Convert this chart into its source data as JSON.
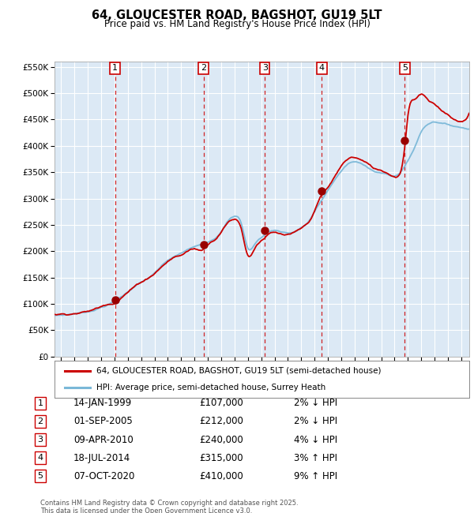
{
  "title": "64, GLOUCESTER ROAD, BAGSHOT, GU19 5LT",
  "subtitle": "Price paid vs. HM Land Registry's House Price Index (HPI)",
  "legend_line1": "64, GLOUCESTER ROAD, BAGSHOT, GU19 5LT (semi-detached house)",
  "legend_line2": "HPI: Average price, semi-detached house, Surrey Heath",
  "transactions": [
    {
      "num": 1,
      "date": "14-JAN-1999",
      "price": 107000,
      "pct": "2%",
      "dir": "↓",
      "x_year": 1999.04
    },
    {
      "num": 2,
      "date": "01-SEP-2005",
      "price": 212000,
      "pct": "2%",
      "dir": "↓",
      "x_year": 2005.67
    },
    {
      "num": 3,
      "date": "09-APR-2010",
      "price": 240000,
      "pct": "4%",
      "dir": "↓",
      "x_year": 2010.27
    },
    {
      "num": 4,
      "date": "18-JUL-2014",
      "price": 315000,
      "pct": "3%",
      "dir": "↑",
      "x_year": 2014.54
    },
    {
      "num": 5,
      "date": "07-OCT-2020",
      "price": 410000,
      "pct": "9%",
      "dir": "↑",
      "x_year": 2020.77
    }
  ],
  "hpi_color": "#7ab8d8",
  "price_color": "#cc0000",
  "dot_color": "#990000",
  "vline_color": "#cc0000",
  "bg_color": "#dce9f5",
  "grid_color": "#ffffff",
  "footer": "Contains HM Land Registry data © Crown copyright and database right 2025.\nThis data is licensed under the Open Government Licence v3.0.",
  "ylim": [
    0,
    560000
  ],
  "yticks": [
    0,
    50000,
    100000,
    150000,
    200000,
    250000,
    300000,
    350000,
    400000,
    450000,
    500000,
    550000
  ],
  "xlim_start": 1994.5,
  "xlim_end": 2025.6,
  "hpi_anchors_x": [
    1994.5,
    1995.0,
    1995.5,
    1996.0,
    1996.5,
    1997.0,
    1997.5,
    1998.0,
    1998.5,
    1999.0,
    1999.5,
    2000.0,
    2000.5,
    2001.0,
    2001.5,
    2002.0,
    2002.5,
    2003.0,
    2003.5,
    2004.0,
    2004.5,
    2005.0,
    2005.5,
    2006.0,
    2006.5,
    2007.0,
    2007.5,
    2008.0,
    2008.5,
    2009.0,
    2009.5,
    2010.0,
    2010.5,
    2011.0,
    2011.5,
    2012.0,
    2012.5,
    2013.0,
    2013.5,
    2014.0,
    2014.5,
    2015.0,
    2015.5,
    2016.0,
    2016.5,
    2017.0,
    2017.5,
    2018.0,
    2018.5,
    2019.0,
    2019.5,
    2020.0,
    2020.5,
    2021.0,
    2021.5,
    2022.0,
    2022.5,
    2023.0,
    2023.5,
    2024.0,
    2024.5,
    2025.0,
    2025.5
  ],
  "hpi_anchors_y": [
    78000,
    79000,
    80000,
    82000,
    84000,
    86000,
    90000,
    95000,
    100000,
    107000,
    115000,
    125000,
    135000,
    143000,
    150000,
    160000,
    172000,
    183000,
    190000,
    196000,
    203000,
    208000,
    212000,
    218000,
    225000,
    240000,
    260000,
    268000,
    255000,
    208000,
    215000,
    228000,
    238000,
    242000,
    240000,
    238000,
    240000,
    248000,
    258000,
    278000,
    298000,
    318000,
    338000,
    355000,
    368000,
    372000,
    368000,
    362000,
    355000,
    352000,
    348000,
    345000,
    355000,
    375000,
    400000,
    430000,
    445000,
    450000,
    448000,
    445000,
    442000,
    440000,
    438000
  ],
  "price_anchors_x": [
    1994.5,
    1995.0,
    1995.5,
    1996.0,
    1996.5,
    1997.0,
    1997.5,
    1998.0,
    1998.5,
    1999.04,
    1999.5,
    2000.0,
    2000.5,
    2001.0,
    2001.5,
    2002.0,
    2002.5,
    2003.0,
    2003.5,
    2004.0,
    2004.5,
    2005.0,
    2005.67,
    2006.0,
    2006.5,
    2007.0,
    2007.5,
    2008.0,
    2008.5,
    2009.0,
    2009.5,
    2010.27,
    2010.5,
    2011.0,
    2011.5,
    2012.0,
    2012.5,
    2013.0,
    2013.5,
    2014.0,
    2014.54,
    2015.0,
    2015.5,
    2016.0,
    2016.5,
    2017.0,
    2017.5,
    2018.0,
    2018.5,
    2019.0,
    2019.5,
    2020.0,
    2020.77,
    2021.0,
    2021.5,
    2022.0,
    2022.5,
    2023.0,
    2023.5,
    2024.0,
    2024.5,
    2025.0,
    2025.5
  ],
  "price_anchors_y": [
    80000,
    81000,
    82000,
    84000,
    86000,
    88000,
    92000,
    97000,
    103000,
    107000,
    117000,
    128000,
    138000,
    147000,
    155000,
    165000,
    177000,
    188000,
    196000,
    200000,
    208000,
    212000,
    212000,
    222000,
    232000,
    248000,
    265000,
    272000,
    255000,
    205000,
    218000,
    240000,
    245000,
    248000,
    244000,
    242000,
    245000,
    252000,
    262000,
    285000,
    315000,
    328000,
    348000,
    368000,
    382000,
    385000,
    380000,
    372000,
    363000,
    360000,
    355000,
    350000,
    410000,
    468000,
    500000,
    510000,
    498000,
    488000,
    478000,
    470000,
    462000,
    458000,
    470000
  ]
}
